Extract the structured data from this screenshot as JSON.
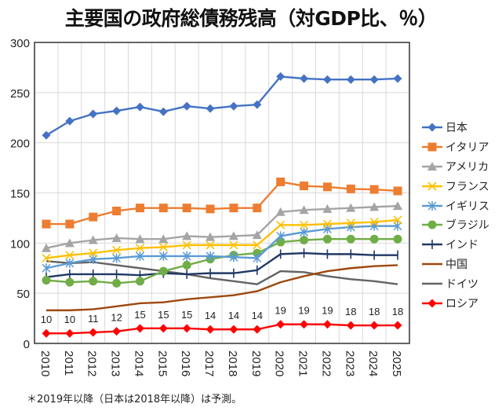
{
  "title": "主要国の政府総債務残高（対GDP比、％）",
  "footnote": "＊2019年以降（日本は2018年以降）は予測。",
  "chart_data": {
    "type": "line",
    "title": "主要国の政府総債務残高（対GDP比、％）",
    "xlabel": "",
    "ylabel": "",
    "x": [
      "2010",
      "2011",
      "2012",
      "2013",
      "2014",
      "2015",
      "2016",
      "2017",
      "2018",
      "2019",
      "2020",
      "2021",
      "2022",
      "2023",
      "2024",
      "2025"
    ],
    "ylim": [
      0,
      300
    ],
    "yticks": [
      0,
      50,
      100,
      150,
      200,
      250,
      300
    ],
    "grid": true,
    "legend_position": "right",
    "series": [
      {
        "name": "日本",
        "color": "#4472C4",
        "marker": "diamond",
        "values": [
          207.5,
          221.6,
          228.7,
          231.8,
          235.7,
          231.0,
          236.5,
          234.1,
          236.5,
          238.0,
          266.0,
          264.0,
          263.0,
          263.0,
          263.0,
          264.0
        ]
      },
      {
        "name": "イタリア",
        "color": "#ED7D31",
        "marker": "square",
        "values": [
          119,
          119,
          126,
          132,
          135,
          135,
          135,
          134,
          135,
          135,
          161,
          157,
          156,
          154,
          153.5,
          152
        ]
      },
      {
        "name": "アメリカ",
        "color": "#A5A5A5",
        "marker": "triangle",
        "values": [
          95,
          100,
          103,
          105,
          104,
          104,
          107,
          106,
          107,
          108,
          131,
          133,
          134,
          135,
          136,
          137
        ]
      },
      {
        "name": "フランス",
        "color": "#FFC000",
        "marker": "x",
        "values": [
          85,
          88,
          90,
          93,
          95,
          96,
          98,
          98,
          98,
          98,
          118,
          118,
          119,
          120,
          121,
          123
        ]
      },
      {
        "name": "イギリス",
        "color": "#5B9BD5",
        "marker": "star",
        "values": [
          75,
          80,
          84,
          85,
          87,
          87,
          87,
          87,
          86,
          85,
          107,
          111,
          114,
          116,
          117,
          117
        ]
      },
      {
        "name": "ブラジル",
        "color": "#70AD47",
        "marker": "circle",
        "values": [
          63,
          61,
          62,
          60,
          62,
          72,
          78,
          84,
          88,
          90,
          101,
          103,
          104,
          104,
          104,
          104
        ]
      },
      {
        "name": "インド",
        "color": "#203864",
        "marker": "plus",
        "values": [
          66,
          69,
          69,
          69,
          68,
          70,
          69,
          70,
          70,
          73,
          89,
          90,
          89,
          89,
          88,
          88
        ]
      },
      {
        "name": "中国",
        "color": "#9E480E",
        "marker": "none",
        "values": [
          33,
          33,
          34,
          37,
          40,
          41,
          44,
          46,
          48,
          52,
          61,
          67,
          72,
          75,
          77,
          78
        ]
      },
      {
        "name": "ドイツ",
        "color": "#636363",
        "marker": "none",
        "values": [
          82,
          80,
          81,
          78,
          75,
          72,
          69,
          65,
          62,
          59,
          72,
          71,
          67,
          64,
          62,
          59
        ]
      },
      {
        "name": "ロシア",
        "color": "#FF0000",
        "marker": "diamond",
        "values": [
          10,
          10,
          11,
          12,
          15,
          15,
          15,
          14,
          14,
          14,
          19,
          19,
          19,
          18,
          18,
          18
        ],
        "data_labels": [
          "10",
          "10",
          "11",
          "12",
          "15",
          "15",
          "15",
          "14",
          "14",
          "14",
          "19",
          "19",
          "19",
          "18",
          "18",
          "18"
        ]
      }
    ]
  }
}
